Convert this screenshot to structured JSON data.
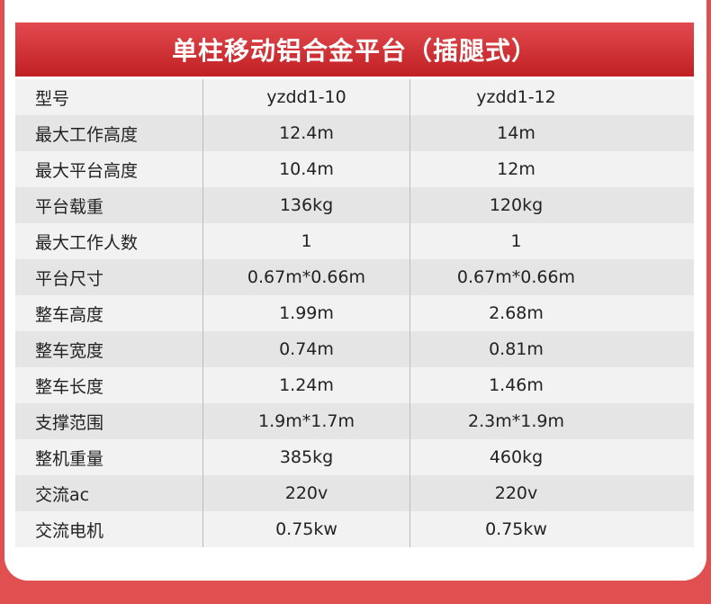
{
  "title": "单柱移动铝合金平台（插腿式）",
  "colors": {
    "background": "#e05050",
    "header": "#c9282b"
  },
  "rows": [
    [
      "型号",
      "yzdd1-10",
      "yzdd1-12"
    ],
    [
      "最大工作高度",
      "12.4m",
      "14m"
    ],
    [
      "最大平台高度",
      "10.4m",
      "12m"
    ],
    [
      "平台载重",
      "136kg",
      "120kg"
    ],
    [
      "最大工作人数",
      "1",
      "1"
    ],
    [
      "平台尺寸",
      "0.67m*0.66m",
      "0.67m*0.66m"
    ],
    [
      "整车高度",
      "1.99m",
      "2.68m"
    ],
    [
      "整车宽度",
      "0.74m",
      "0.81m"
    ],
    [
      "整车长度",
      "1.24m",
      "1.46m"
    ],
    [
      "支撑范围",
      "1.9m*1.7m",
      "2.3m*1.9m"
    ],
    [
      "整机重量",
      "385kg",
      "460kg"
    ],
    [
      "交流ac",
      "220v",
      "220v"
    ],
    [
      "交流电机",
      "0.75kw",
      "0.75kw"
    ]
  ]
}
